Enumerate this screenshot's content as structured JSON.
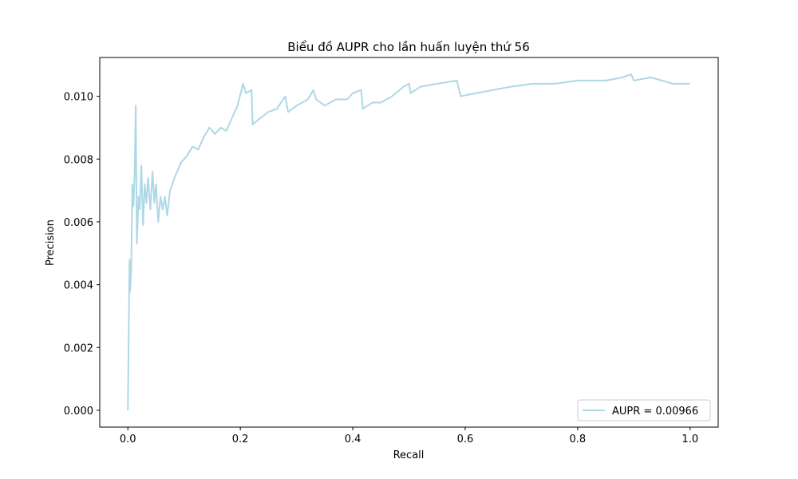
{
  "chart_data": {
    "type": "line",
    "title": "Biểu đồ AUPR cho lần huấn luyện thứ 56",
    "xlabel": "Recall",
    "ylabel": "Precision",
    "xlim": [
      -0.05,
      1.05
    ],
    "ylim": [
      -0.000535,
      0.011235
    ],
    "xticks": [
      {
        "value": 0,
        "label": "0.0"
      },
      0.2,
      0.4,
      0.6,
      0.8,
      {
        "value": 1,
        "label": "1.0"
      }
    ],
    "yticks": [
      {
        "value": 0,
        "label": "0.000"
      },
      0.002,
      0.004,
      0.006,
      0.008,
      {
        "value": 0.01,
        "label": "0.010"
      }
    ],
    "grid": false,
    "legend_loc": "lower right",
    "series": [
      {
        "name": "AUPR = 0.00966",
        "color": "#add8e6",
        "x": [
          0.0,
          0.003,
          0.004,
          0.006,
          0.008,
          0.01,
          0.012,
          0.014,
          0.016,
          0.019,
          0.021,
          0.024,
          0.027,
          0.03,
          0.033,
          0.036,
          0.04,
          0.044,
          0.047,
          0.05,
          0.054,
          0.058,
          0.062,
          0.066,
          0.07,
          0.075,
          0.085,
          0.095,
          0.105,
          0.115,
          0.125,
          0.135,
          0.145,
          0.155,
          0.165,
          0.175,
          0.185,
          0.195,
          0.205,
          0.21,
          0.22,
          0.222,
          0.235,
          0.25,
          0.265,
          0.28,
          0.285,
          0.3,
          0.32,
          0.33,
          0.335,
          0.35,
          0.37,
          0.39,
          0.4,
          0.415,
          0.418,
          0.435,
          0.45,
          0.47,
          0.49,
          0.5,
          0.503,
          0.52,
          0.55,
          0.585,
          0.592,
          0.62,
          0.65,
          0.68,
          0.72,
          0.76,
          0.8,
          0.85,
          0.88,
          0.895,
          0.9,
          0.93,
          0.95,
          0.97,
          0.99,
          1.0
        ],
        "values": [
          0.0,
          0.0048,
          0.0038,
          0.0045,
          0.0072,
          0.0065,
          0.0075,
          0.0097,
          0.0053,
          0.0068,
          0.0064,
          0.0078,
          0.0059,
          0.0072,
          0.0066,
          0.0074,
          0.0064,
          0.0076,
          0.0066,
          0.0072,
          0.006,
          0.0068,
          0.0064,
          0.0068,
          0.0062,
          0.007,
          0.0075,
          0.0079,
          0.0081,
          0.0084,
          0.0083,
          0.0087,
          0.009,
          0.0088,
          0.009,
          0.0089,
          0.0093,
          0.0097,
          0.0104,
          0.0101,
          0.0102,
          0.0091,
          0.0093,
          0.0095,
          0.0096,
          0.01,
          0.0095,
          0.0097,
          0.0099,
          0.0102,
          0.0099,
          0.0097,
          0.0099,
          0.0099,
          0.0101,
          0.0102,
          0.0096,
          0.0098,
          0.0098,
          0.01,
          0.0103,
          0.0104,
          0.0101,
          0.0103,
          0.0104,
          0.0105,
          0.01,
          0.0101,
          0.0102,
          0.0103,
          0.0104,
          0.0104,
          0.0105,
          0.0105,
          0.0106,
          0.0107,
          0.0105,
          0.0106,
          0.0105,
          0.0104,
          0.0104,
          0.0104
        ]
      }
    ]
  }
}
